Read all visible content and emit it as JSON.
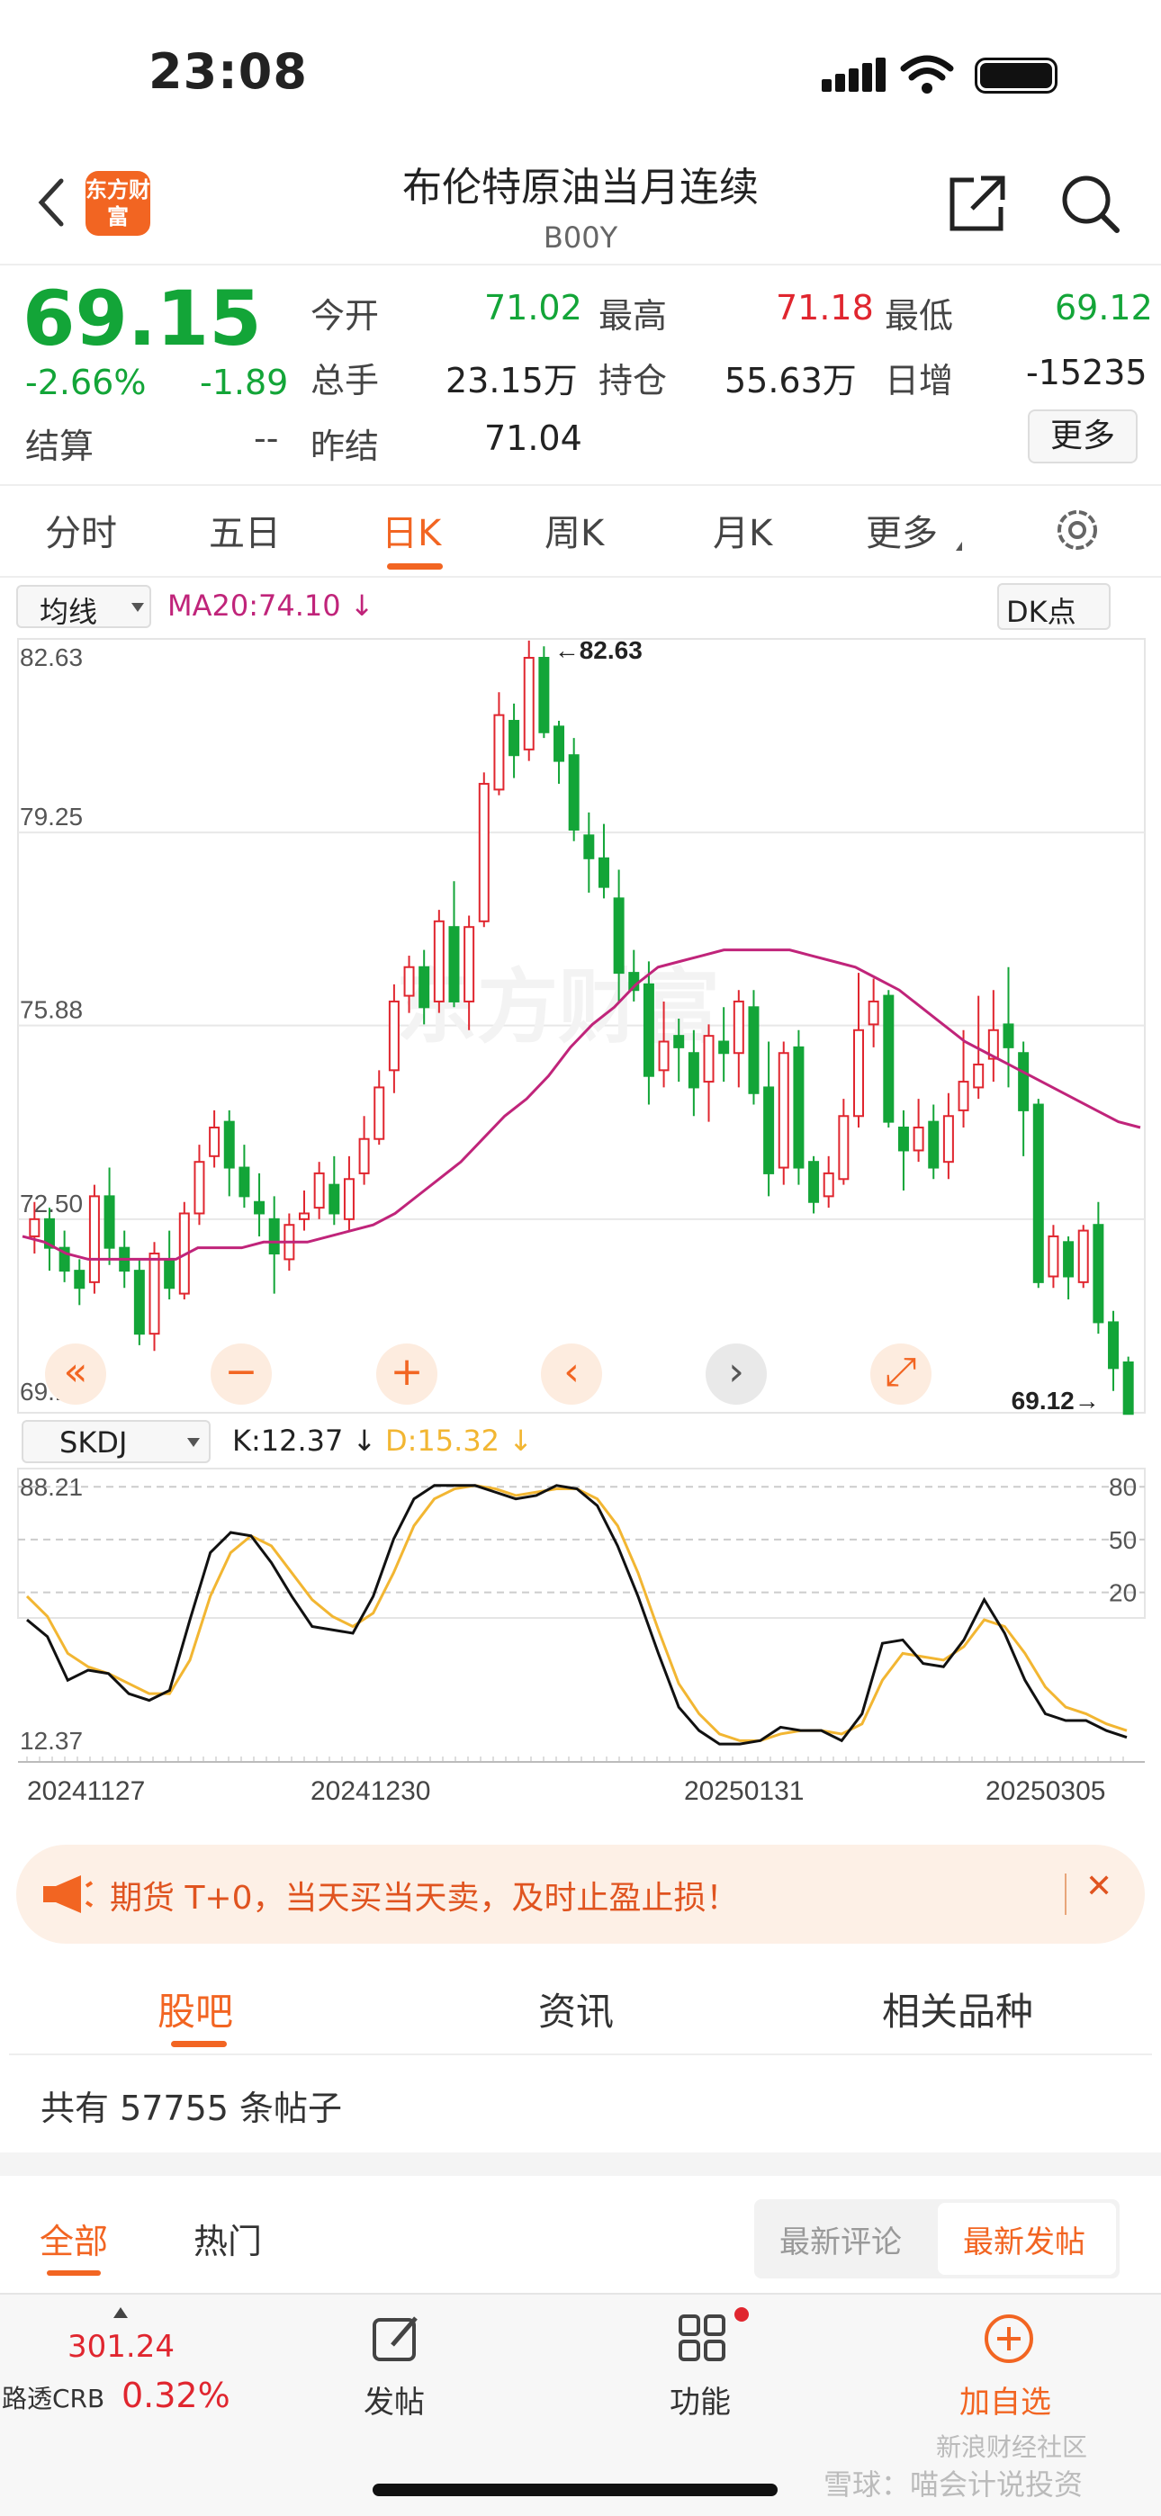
{
  "status": {
    "time": "23:08"
  },
  "nav": {
    "logo_text": "东方财富",
    "title": "布伦特原油当月连续",
    "code": "B00Y"
  },
  "quote": {
    "price": "69.15",
    "change_pct": "-2.66%",
    "change": "-1.89",
    "open_label": "今开",
    "open": "71.02",
    "high_label": "最高",
    "high": "71.18",
    "low_label": "最低",
    "low": "69.12",
    "volume_label": "总手",
    "volume": "23.15万",
    "oi_label": "持仓",
    "oi": "55.63万",
    "daily_inc_label": "日增",
    "daily_inc": "-15235",
    "settle_label": "结算",
    "settle": "--",
    "prev_settle_label": "昨结",
    "prev_settle": "71.04",
    "more_button": "更多"
  },
  "period_tabs": [
    "分时",
    "五日",
    "日K",
    "周K",
    "月K",
    "更多"
  ],
  "kline": {
    "indicator_select": "均线",
    "ma_label": "MA20:74.10 ↓",
    "dk_button": "DK点",
    "y_ticks": [
      "82.63",
      "79.25",
      "75.88",
      "72.50",
      "69.12"
    ],
    "high_marker": "82.63",
    "low_marker": "69.12",
    "watermark": "东方财富"
  },
  "skdj": {
    "select": "SKDJ",
    "k_label": "K:12.37 ↓",
    "d_label": "D:15.32 ↓",
    "top": "88.21",
    "bottom": "12.37",
    "levels": [
      "80",
      "50",
      "20"
    ],
    "dates": [
      "20241127",
      "20241230",
      "20250131",
      "20250305"
    ]
  },
  "controls": [
    "«",
    "−",
    "+",
    "‹",
    "›",
    "⤢"
  ],
  "notice": {
    "text": "期货 T+0，当天买当天卖，及时止盈止损！",
    "close": "✕"
  },
  "section_tabs": [
    "股吧",
    "资讯",
    "相关品种"
  ],
  "post_count": "共有 57755 条帖子",
  "filter": {
    "all": "全部",
    "hot": "热门",
    "latest_comment": "最新评论",
    "latest_post": "最新发帖"
  },
  "bottom": {
    "index_value": "301.24",
    "index_name": "路透CRB",
    "index_pct": "0.32%",
    "post": "发帖",
    "function": "功能",
    "add": "加自选"
  },
  "watermark": {
    "line1": "新浪财经社区",
    "line2": "雪球：喵会计说投资"
  },
  "colors": {
    "up": "#e0262f",
    "down": "#13a538",
    "accent": "#f26522",
    "ma": "#c0247a",
    "d_line": "#f2b632"
  },
  "chart_data": {
    "type": "candlestick",
    "kline": [
      [
        72.2,
        72.5,
        71.9,
        72.8
      ],
      [
        72.5,
        72.0,
        71.6,
        72.7
      ],
      [
        72.0,
        71.6,
        71.4,
        72.3
      ],
      [
        71.6,
        71.3,
        71.0,
        71.8
      ],
      [
        71.4,
        72.9,
        71.2,
        73.1
      ],
      [
        72.9,
        72.0,
        71.7,
        73.4
      ],
      [
        72.0,
        71.6,
        71.3,
        72.3
      ],
      [
        71.6,
        70.5,
        70.3,
        71.8
      ],
      [
        70.5,
        71.9,
        70.2,
        72.1
      ],
      [
        71.8,
        71.3,
        71.1,
        72.3
      ],
      [
        71.2,
        72.6,
        71.1,
        72.8
      ],
      [
        72.6,
        73.5,
        72.4,
        73.8
      ],
      [
        73.6,
        74.1,
        73.4,
        74.4
      ],
      [
        74.2,
        73.4,
        72.9,
        74.4
      ],
      [
        73.4,
        72.9,
        72.7,
        73.8
      ],
      [
        72.8,
        72.6,
        72.2,
        73.3
      ],
      [
        72.5,
        71.9,
        71.2,
        72.9
      ],
      [
        71.8,
        72.4,
        71.6,
        72.6
      ],
      [
        72.5,
        72.6,
        72.3,
        73.0
      ],
      [
        72.7,
        73.3,
        72.5,
        73.5
      ],
      [
        73.1,
        72.6,
        72.4,
        73.6
      ],
      [
        72.5,
        73.2,
        72.3,
        73.6
      ],
      [
        73.3,
        73.9,
        73.1,
        74.3
      ],
      [
        73.9,
        74.8,
        73.8,
        75.1
      ],
      [
        75.1,
        76.3,
        74.7,
        76.6
      ],
      [
        76.4,
        76.9,
        76.1,
        77.1
      ],
      [
        76.9,
        76.2,
        75.9,
        77.2
      ],
      [
        76.3,
        77.7,
        76.1,
        77.9
      ],
      [
        77.6,
        76.3,
        76.2,
        78.4
      ],
      [
        76.3,
        77.6,
        75.8,
        77.8
      ],
      [
        77.7,
        80.1,
        77.6,
        80.3
      ],
      [
        80.0,
        81.3,
        79.9,
        81.7
      ],
      [
        81.2,
        80.6,
        80.2,
        81.5
      ],
      [
        80.7,
        82.3,
        80.5,
        82.6
      ],
      [
        82.3,
        81.0,
        80.9,
        82.5
      ],
      [
        81.1,
        80.5,
        80.1,
        81.2
      ],
      [
        80.6,
        79.3,
        79.1,
        80.9
      ],
      [
        79.2,
        78.8,
        78.2,
        79.6
      ],
      [
        78.8,
        78.3,
        78.1,
        79.4
      ],
      [
        78.1,
        76.8,
        76.3,
        78.6
      ],
      [
        76.8,
        76.5,
        76.3,
        77.2
      ],
      [
        76.6,
        75.0,
        74.5,
        77.0
      ],
      [
        75.1,
        75.6,
        74.8,
        76.3
      ],
      [
        75.7,
        75.5,
        74.9,
        76.0
      ],
      [
        75.4,
        74.8,
        74.3,
        75.8
      ],
      [
        74.9,
        75.7,
        74.2,
        75.9
      ],
      [
        75.6,
        75.4,
        74.9,
        76.2
      ],
      [
        75.4,
        76.3,
        74.8,
        76.5
      ],
      [
        76.2,
        74.7,
        74.5,
        76.5
      ],
      [
        74.8,
        73.3,
        72.9,
        75.6
      ],
      [
        73.4,
        75.4,
        73.1,
        75.6
      ],
      [
        75.5,
        73.4,
        73.1,
        75.8
      ],
      [
        73.5,
        72.8,
        72.6,
        73.6
      ],
      [
        72.9,
        73.3,
        72.7,
        73.6
      ],
      [
        73.2,
        74.3,
        73.1,
        74.6
      ],
      [
        74.3,
        75.8,
        74.1,
        76.8
      ],
      [
        75.9,
        76.3,
        75.5,
        76.7
      ],
      [
        76.4,
        74.2,
        74.1,
        76.5
      ],
      [
        74.1,
        73.7,
        73.0,
        74.4
      ],
      [
        73.7,
        74.1,
        73.5,
        74.6
      ],
      [
        74.2,
        73.4,
        73.2,
        74.5
      ],
      [
        73.5,
        74.3,
        73.2,
        74.7
      ],
      [
        74.4,
        74.9,
        74.1,
        75.8
      ],
      [
        74.8,
        75.2,
        74.6,
        76.4
      ],
      [
        75.3,
        75.8,
        74.9,
        76.5
      ],
      [
        75.9,
        75.5,
        74.8,
        76.9
      ],
      [
        75.4,
        74.4,
        73.6,
        75.6
      ],
      [
        74.5,
        71.4,
        71.3,
        74.6
      ],
      [
        71.5,
        72.2,
        71.3,
        72.4
      ],
      [
        72.1,
        71.5,
        71.1,
        72.2
      ],
      [
        71.4,
        72.3,
        71.3,
        72.4
      ],
      [
        72.4,
        70.7,
        70.5,
        72.8
      ],
      [
        70.7,
        69.9,
        69.5,
        70.9
      ],
      [
        70.0,
        69.1,
        69.1,
        70.1
      ]
    ],
    "ma20": [
      72.2,
      72.1,
      71.9,
      71.8,
      71.8,
      71.8,
      71.8,
      71.8,
      72.0,
      72.0,
      72.0,
      72.1,
      72.1,
      72.1,
      72.2,
      72.3,
      72.4,
      72.6,
      72.9,
      73.2,
      73.5,
      73.9,
      74.3,
      74.6,
      75.0,
      75.5,
      75.9,
      76.2,
      76.6,
      76.9,
      77.0,
      77.1,
      77.2,
      77.2,
      77.2,
      77.2,
      77.1,
      77.0,
      76.9,
      76.7,
      76.5,
      76.2,
      75.9,
      75.6,
      75.4,
      75.2,
      75.0,
      74.8,
      74.6,
      74.4,
      74.2,
      74.1
    ],
    "skdj_k": [
      48,
      43,
      30,
      33,
      32,
      26,
      24,
      27,
      48,
      68,
      74,
      73,
      65,
      55,
      46,
      45,
      44,
      55,
      72,
      84,
      88,
      88,
      88,
      86,
      84,
      85,
      88,
      87,
      82,
      70,
      55,
      38,
      22,
      15,
      11,
      11,
      12,
      16,
      15,
      15,
      12,
      20,
      41,
      42,
      35,
      34,
      42,
      54,
      44,
      30,
      20,
      18,
      18,
      15,
      13
    ],
    "skdj_d": [
      55,
      49,
      38,
      34,
      32,
      29,
      26,
      26,
      36,
      55,
      68,
      73,
      70,
      62,
      54,
      49,
      46,
      50,
      62,
      76,
      84,
      87,
      88,
      87,
      85,
      86,
      87,
      87,
      84,
      76,
      62,
      45,
      29,
      20,
      14,
      12,
      12,
      14,
      15,
      15,
      14,
      17,
      30,
      38,
      37,
      36,
      40,
      48,
      46,
      38,
      28,
      22,
      20,
      17,
      15
    ]
  }
}
